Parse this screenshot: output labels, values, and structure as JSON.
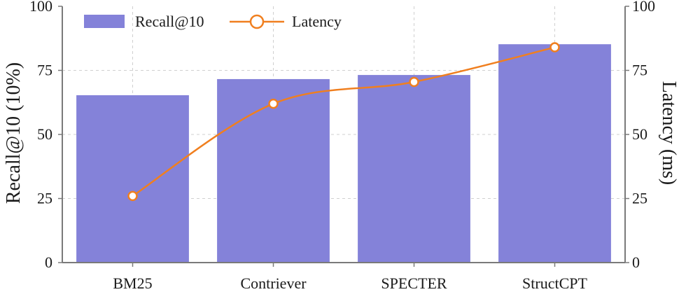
{
  "chart_data": {
    "type": "bar",
    "categories": [
      "BM25",
      "Contriever",
      "SPECTER",
      "StructCPT"
    ],
    "series": [
      {
        "name": "Recall@10",
        "type": "bar",
        "axis": "left",
        "values": [
          65.3,
          71.6,
          73.2,
          85.2
        ],
        "color": "#8482d9"
      },
      {
        "name": "Latency",
        "type": "line",
        "axis": "right",
        "values": [
          26,
          62,
          70.5,
          84
        ],
        "color": "#f07f1f"
      }
    ],
    "ylabel": "Recall@10 (10%)",
    "y2label": "Latency (ms)",
    "ylim": [
      0,
      100
    ],
    "y2lim": [
      0,
      100
    ],
    "yticks": [
      0,
      25,
      50,
      75,
      100
    ],
    "y2ticks": [
      0,
      25,
      50,
      75,
      100
    ],
    "grid": true,
    "legend_position": "top-left"
  }
}
